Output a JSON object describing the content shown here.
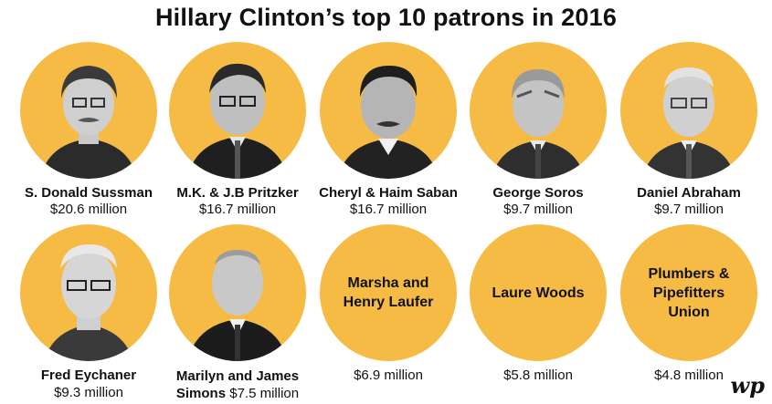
{
  "title": "Hillary Clinton’s top 10 patrons in 2016",
  "accent_color": "#f5bb45",
  "patrons": [
    {
      "name": "S. Donald Sussman",
      "amount": "$20.6 million"
    },
    {
      "name": "M.K. & J.B Pritzker",
      "amount": "$16.7 million"
    },
    {
      "name": "Cheryl & Haim Saban",
      "amount": "$16.7 million"
    },
    {
      "name": "George Soros",
      "amount": "$9.7 million"
    },
    {
      "name": "Daniel Abraham",
      "amount": "$9.7 million"
    },
    {
      "name": "Fred Eychaner",
      "amount": "$9.3 million"
    },
    {
      "name_line1": "Marilyn and James",
      "name_line2": "Simons",
      "amount": "$7.5 million"
    },
    {
      "name": "Marsha and Henry Laufer",
      "amount": "$6.9 million"
    },
    {
      "name": "Laure Woods",
      "amount": "$5.8 million"
    },
    {
      "name": "Plumbers & Pipefitters Union",
      "amount": "$4.8 million"
    }
  ],
  "logo": "wp"
}
